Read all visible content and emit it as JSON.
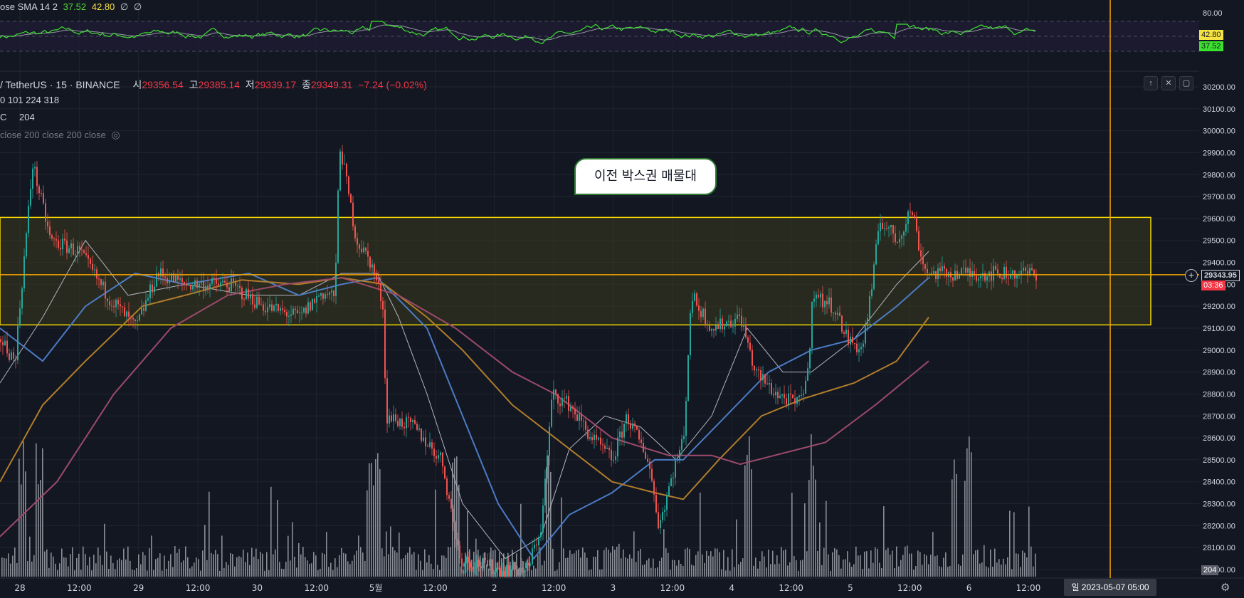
{
  "indicator_top": {
    "label": "ose SMA 14 2",
    "v1": "37.52",
    "v2": "42.80",
    "v3": "∅",
    "v4": "∅",
    "axis_label": "80.00",
    "tag_v2": "42.80",
    "tag_v1": "37.52",
    "line_color": "#3ce12f",
    "sma_color": "#9598a1"
  },
  "legend": {
    "symbol": "/ TetherUS · 15 · BINANCE",
    "o_label": "시",
    "o_val": "29356.54",
    "h_label": "고",
    "h_val": "29385.14",
    "l_label": "저",
    "l_val": "29339.17",
    "c_label": "종",
    "c_val": "29349.31",
    "change": "−7.24 (−0.02%)",
    "ma_line": "0  101  224  318",
    "vol_line_a": "C",
    "vol_line_b": "204",
    "hidden_line": "close 200 close 200 close"
  },
  "annotation": {
    "callout_text": "이전 박스권 매물대"
  },
  "price_tag": {
    "price": "29343.95",
    "timer": "03:36"
  },
  "volume_tag": "204",
  "crosshair_date": "일 2023-05-07   05:00",
  "chart_data": {
    "type": "candlestick",
    "symbol": "TetherUS · 15 · BINANCE",
    "y_ticks": [
      "30200.00",
      "30100.00",
      "30000.00",
      "29900.00",
      "29800.00",
      "29700.00",
      "29600.00",
      "29500.00",
      "29400.00",
      "29300.00",
      "29200.00",
      "29100.00",
      "29000.00",
      "28900.00",
      "28800.00",
      "28700.00",
      "28600.00",
      "28500.00",
      "28400.00",
      "28300.00",
      "28200.00",
      "28100.00",
      "28000.00"
    ],
    "x_ticks": [
      "28",
      "12:00",
      "29",
      "12:00",
      "30",
      "12:00",
      "5월",
      "12:00",
      "2",
      "12:00",
      "3",
      "12:00",
      "4",
      "12:00",
      "5",
      "12:00",
      "6",
      "12:00"
    ],
    "ylim": [
      27950,
      30270
    ],
    "box_zone": [
      29115,
      29605
    ],
    "horizontal_line": 29343.95,
    "keypoints": [
      [
        0,
        29050
      ],
      [
        20,
        28950
      ],
      [
        45,
        29850
      ],
      [
        70,
        29500
      ],
      [
        110,
        29450
      ],
      [
        150,
        29250
      ],
      [
        190,
        29100
      ],
      [
        220,
        29350
      ],
      [
        260,
        29300
      ],
      [
        320,
        29300
      ],
      [
        370,
        29200
      ],
      [
        420,
        29150
      ],
      [
        450,
        29260
      ],
      [
        470,
        29250
      ],
      [
        476,
        29950
      ],
      [
        500,
        29500
      ],
      [
        520,
        29400
      ],
      [
        538,
        29200
      ],
      [
        541,
        28700
      ],
      [
        580,
        28650
      ],
      [
        620,
        28500
      ],
      [
        645,
        28050
      ],
      [
        700,
        28000
      ],
      [
        740,
        28000
      ],
      [
        760,
        28200
      ],
      [
        775,
        28800
      ],
      [
        800,
        28750
      ],
      [
        830,
        28600
      ],
      [
        860,
        28500
      ],
      [
        880,
        28700
      ],
      [
        910,
        28500
      ],
      [
        925,
        28200
      ],
      [
        945,
        28450
      ],
      [
        960,
        28600
      ],
      [
        970,
        29250
      ],
      [
        1000,
        29100
      ],
      [
        1040,
        29150
      ],
      [
        1060,
        28900
      ],
      [
        1090,
        28800
      ],
      [
        1120,
        28750
      ],
      [
        1135,
        28900
      ],
      [
        1140,
        29250
      ],
      [
        1170,
        29200
      ],
      [
        1190,
        29050
      ],
      [
        1210,
        29000
      ],
      [
        1225,
        29300
      ],
      [
        1235,
        29600
      ],
      [
        1260,
        29500
      ],
      [
        1280,
        29650
      ],
      [
        1295,
        29400
      ],
      [
        1305,
        29350
      ]
    ],
    "ma_lines": [
      {
        "color": "#b2b5be",
        "points": [
          [
            0,
            28850
          ],
          [
            60,
            29150
          ],
          [
            120,
            29500
          ],
          [
            180,
            29250
          ],
          [
            260,
            29300
          ],
          [
            350,
            29250
          ],
          [
            420,
            29250
          ],
          [
            480,
            29350
          ],
          [
            530,
            29350
          ],
          [
            560,
            29150
          ],
          [
            600,
            28800
          ],
          [
            650,
            28300
          ],
          [
            710,
            28050
          ],
          [
            760,
            28150
          ],
          [
            800,
            28550
          ],
          [
            850,
            28700
          ],
          [
            900,
            28650
          ],
          [
            950,
            28500
          ],
          [
            1000,
            28700
          ],
          [
            1050,
            29100
          ],
          [
            1100,
            28900
          ],
          [
            1140,
            28900
          ],
          [
            1200,
            29050
          ],
          [
            1260,
            29300
          ],
          [
            1305,
            29450
          ]
        ]
      },
      {
        "color": "#4b7bc4",
        "points": [
          [
            0,
            29100
          ],
          [
            60,
            28950
          ],
          [
            120,
            29200
          ],
          [
            190,
            29350
          ],
          [
            260,
            29300
          ],
          [
            350,
            29350
          ],
          [
            420,
            29250
          ],
          [
            480,
            29300
          ],
          [
            530,
            29330
          ],
          [
            600,
            29100
          ],
          [
            650,
            28700
          ],
          [
            700,
            28300
          ],
          [
            750,
            28050
          ],
          [
            800,
            28250
          ],
          [
            860,
            28350
          ],
          [
            920,
            28500
          ],
          [
            960,
            28500
          ],
          [
            1020,
            28700
          ],
          [
            1080,
            28900
          ],
          [
            1140,
            29000
          ],
          [
            1200,
            29050
          ],
          [
            1260,
            29200
          ],
          [
            1305,
            29330
          ]
        ]
      },
      {
        "color": "#b07d2a",
        "points": [
          [
            0,
            28400
          ],
          [
            60,
            28750
          ],
          [
            120,
            28950
          ],
          [
            200,
            29200
          ],
          [
            260,
            29250
          ],
          [
            340,
            29320
          ],
          [
            420,
            29300
          ],
          [
            480,
            29330
          ],
          [
            540,
            29300
          ],
          [
            600,
            29150
          ],
          [
            650,
            29000
          ],
          [
            720,
            28750
          ],
          [
            780,
            28600
          ],
          [
            860,
            28400
          ],
          [
            920,
            28350
          ],
          [
            960,
            28320
          ],
          [
            1010,
            28500
          ],
          [
            1070,
            28700
          ],
          [
            1130,
            28780
          ],
          [
            1200,
            28850
          ],
          [
            1260,
            28950
          ],
          [
            1305,
            29150
          ]
        ]
      },
      {
        "color": "#9c4a6b",
        "points": [
          [
            0,
            28150
          ],
          [
            80,
            28400
          ],
          [
            160,
            28800
          ],
          [
            240,
            29100
          ],
          [
            320,
            29250
          ],
          [
            400,
            29300
          ],
          [
            480,
            29330
          ],
          [
            560,
            29250
          ],
          [
            640,
            29100
          ],
          [
            720,
            28900
          ],
          [
            780,
            28800
          ],
          [
            860,
            28600
          ],
          [
            940,
            28520
          ],
          [
            1000,
            28520
          ],
          [
            1040,
            28480
          ],
          [
            1100,
            28530
          ],
          [
            1160,
            28580
          ],
          [
            1230,
            28750
          ],
          [
            1305,
            28950
          ]
        ]
      }
    ]
  }
}
